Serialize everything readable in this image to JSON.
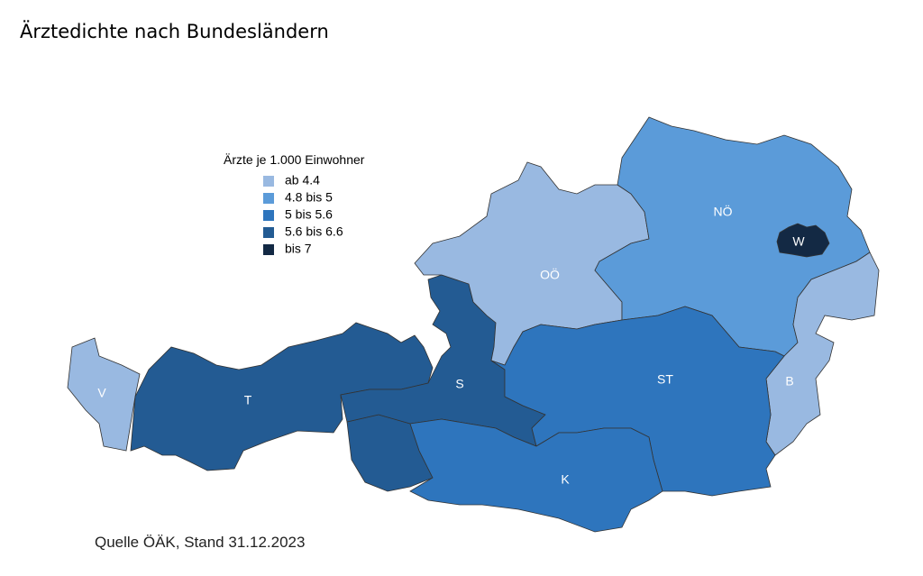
{
  "title": "Ärztedichte nach Bundesländern",
  "legend": {
    "title": "Ärzte je 1.000 Einwohner",
    "items": [
      {
        "label": "ab 4.4",
        "color": "#99b9e1"
      },
      {
        "label": "4.8 bis 5",
        "color": "#5b9bd9"
      },
      {
        "label": "5 bis 5.6",
        "color": "#2e75bd"
      },
      {
        "label": "5.6 bis 6.6",
        "color": "#235b93"
      },
      {
        "label": "bis 7",
        "color": "#132944"
      }
    ]
  },
  "regions": [
    {
      "label": "V",
      "class": 0
    },
    {
      "label": "T",
      "class": 3
    },
    {
      "label": "S",
      "class": 3
    },
    {
      "label": "OÖ",
      "class": 0
    },
    {
      "label": "NÖ",
      "class": 1
    },
    {
      "label": "W",
      "class": 4
    },
    {
      "label": "B",
      "class": 0
    },
    {
      "label": "ST",
      "class": 2
    },
    {
      "label": "K",
      "class": 2
    }
  ],
  "source": "Quelle ÖÄK, Stand 31.12.2023"
}
